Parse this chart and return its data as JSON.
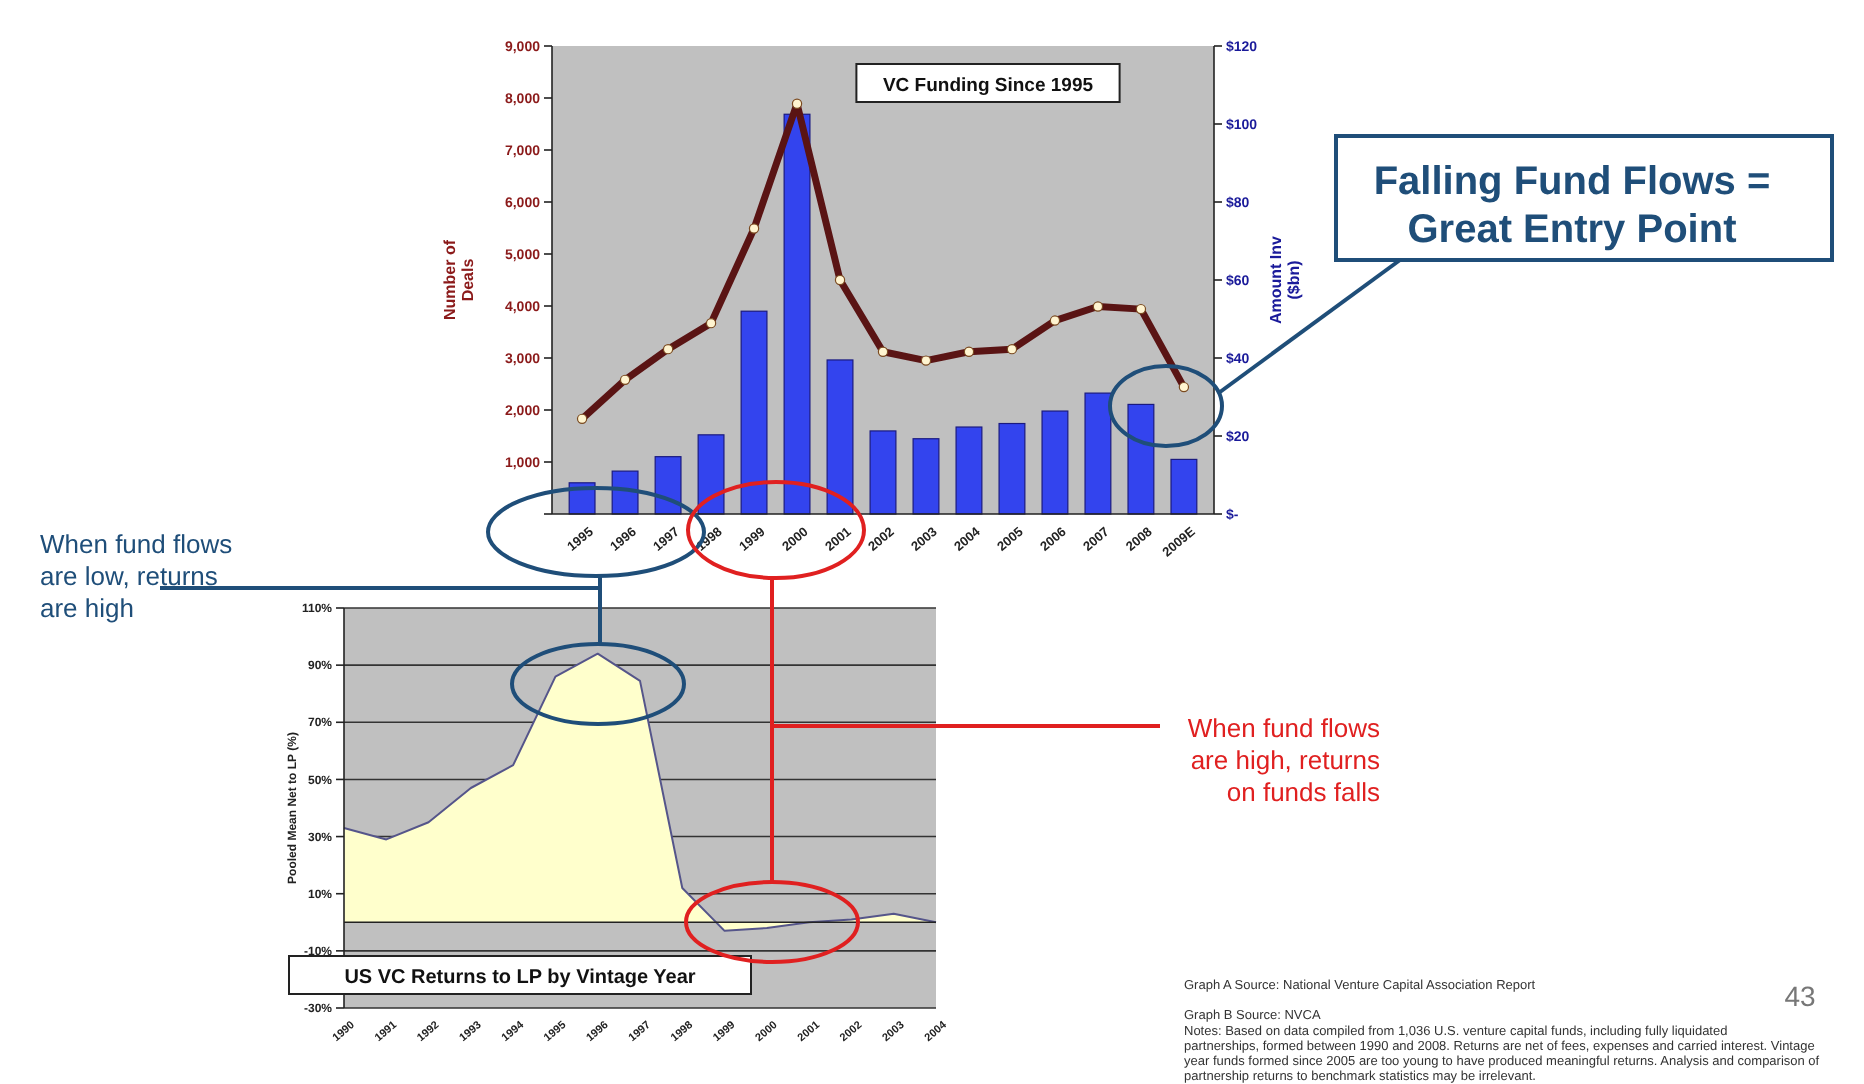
{
  "chart_data": [
    {
      "type": "bar",
      "title": "VC Funding Since 1995",
      "ylabel": "Number of Deals",
      "y2label": "Amount Inv ($bn)",
      "categories": [
        "1995",
        "1996",
        "1997",
        "1998",
        "1999",
        "2000",
        "2001",
        "2002",
        "2003",
        "2004",
        "2005",
        "2006",
        "2007",
        "2008",
        "2009E"
      ],
      "series": [
        {
          "axis": "y2",
          "color": "#3344ee",
          "values": [
            8,
            11,
            14.7,
            20.3,
            52,
            102.5,
            39.5,
            21.3,
            19.3,
            22.3,
            23.2,
            26.4,
            31,
            28.1,
            14
          ]
        },
        {
          "type": "line",
          "marker": "circle",
          "color": "#5a1414",
          "values": [
            1830,
            2580,
            3170,
            3670,
            5490,
            7890,
            4500,
            3120,
            2950,
            3120,
            3170,
            3720,
            3990,
            3940,
            2440
          ]
        }
      ],
      "ylim": [
        0,
        9000
      ],
      "yticks": [
        {
          "value": 0,
          "label": null
        },
        {
          "value": 1000,
          "label": "1,000"
        },
        {
          "value": 2000,
          "label": "2,000"
        },
        {
          "value": 3000,
          "label": "3,000"
        },
        {
          "value": 4000,
          "label": "4,000"
        },
        {
          "value": 5000,
          "label": "5,000"
        },
        {
          "value": 6000,
          "label": "6,000"
        },
        {
          "value": 7000,
          "label": "7,000"
        },
        {
          "value": 8000,
          "label": "8,000"
        },
        {
          "value": 9000,
          "label": "9,000"
        }
      ],
      "y2lim": [
        0,
        120
      ],
      "y2ticks": [
        {
          "value": 0,
          "label": "$-"
        },
        {
          "value": 20,
          "label": "$20"
        },
        {
          "value": 40,
          "label": "$40"
        },
        {
          "value": 60,
          "label": "$60"
        },
        {
          "value": 80,
          "label": "$80"
        },
        {
          "value": 100,
          "label": "$100"
        },
        {
          "value": 120,
          "label": "$120"
        }
      ],
      "annotations": [
        "Falling Fund Flows = Great Entry Point"
      ]
    },
    {
      "type": "area",
      "title": "US VC Returns to LP by Vintage Year",
      "ylabel": "Pooled Mean Net to LP (%)",
      "categories": [
        "1990",
        "1991",
        "1992",
        "1993",
        "1994",
        "1995",
        "1996",
        "1997",
        "1998",
        "1999",
        "2000",
        "2001",
        "2002",
        "2003",
        "2004"
      ],
      "series": [
        {
          "color": "#ffffcc",
          "values": [
            33,
            29,
            35,
            47,
            55,
            86,
            94,
            84.5,
            12,
            -3,
            -2,
            0,
            1,
            3,
            0
          ]
        }
      ],
      "ylim": [
        -30,
        110
      ],
      "yticks": [
        {
          "value": -30,
          "label": "-30%"
        },
        {
          "value": -10,
          "label": "-10%"
        },
        {
          "value": 10,
          "label": "10%"
        },
        {
          "value": 30,
          "label": "30%"
        },
        {
          "value": 50,
          "label": "50%"
        },
        {
          "value": 70,
          "label": "70%"
        },
        {
          "value": 90,
          "label": "90%"
        },
        {
          "value": 110,
          "label": "110%"
        }
      ],
      "grid": "y",
      "annotations": [
        "When fund flows are low, returns are high",
        "When fund flows are high, returns on funds falls",
        "Graph A Source: National Venture Capital Association Report",
        "Graph B Source: NVCA",
        "Notes: Based on data compiled from 1,036 U.S. venture capital funds, including fully liquidated partnerships, formed between 1990 and 2008. Returns are net of fees, expenses and carried interest. Vintage year funds formed since 2005 are too young to have produced meaningful returns. Analysis and comparison of partnership returns to benchmark statistics may be irrelevant.",
        "43"
      ]
    }
  ]
}
